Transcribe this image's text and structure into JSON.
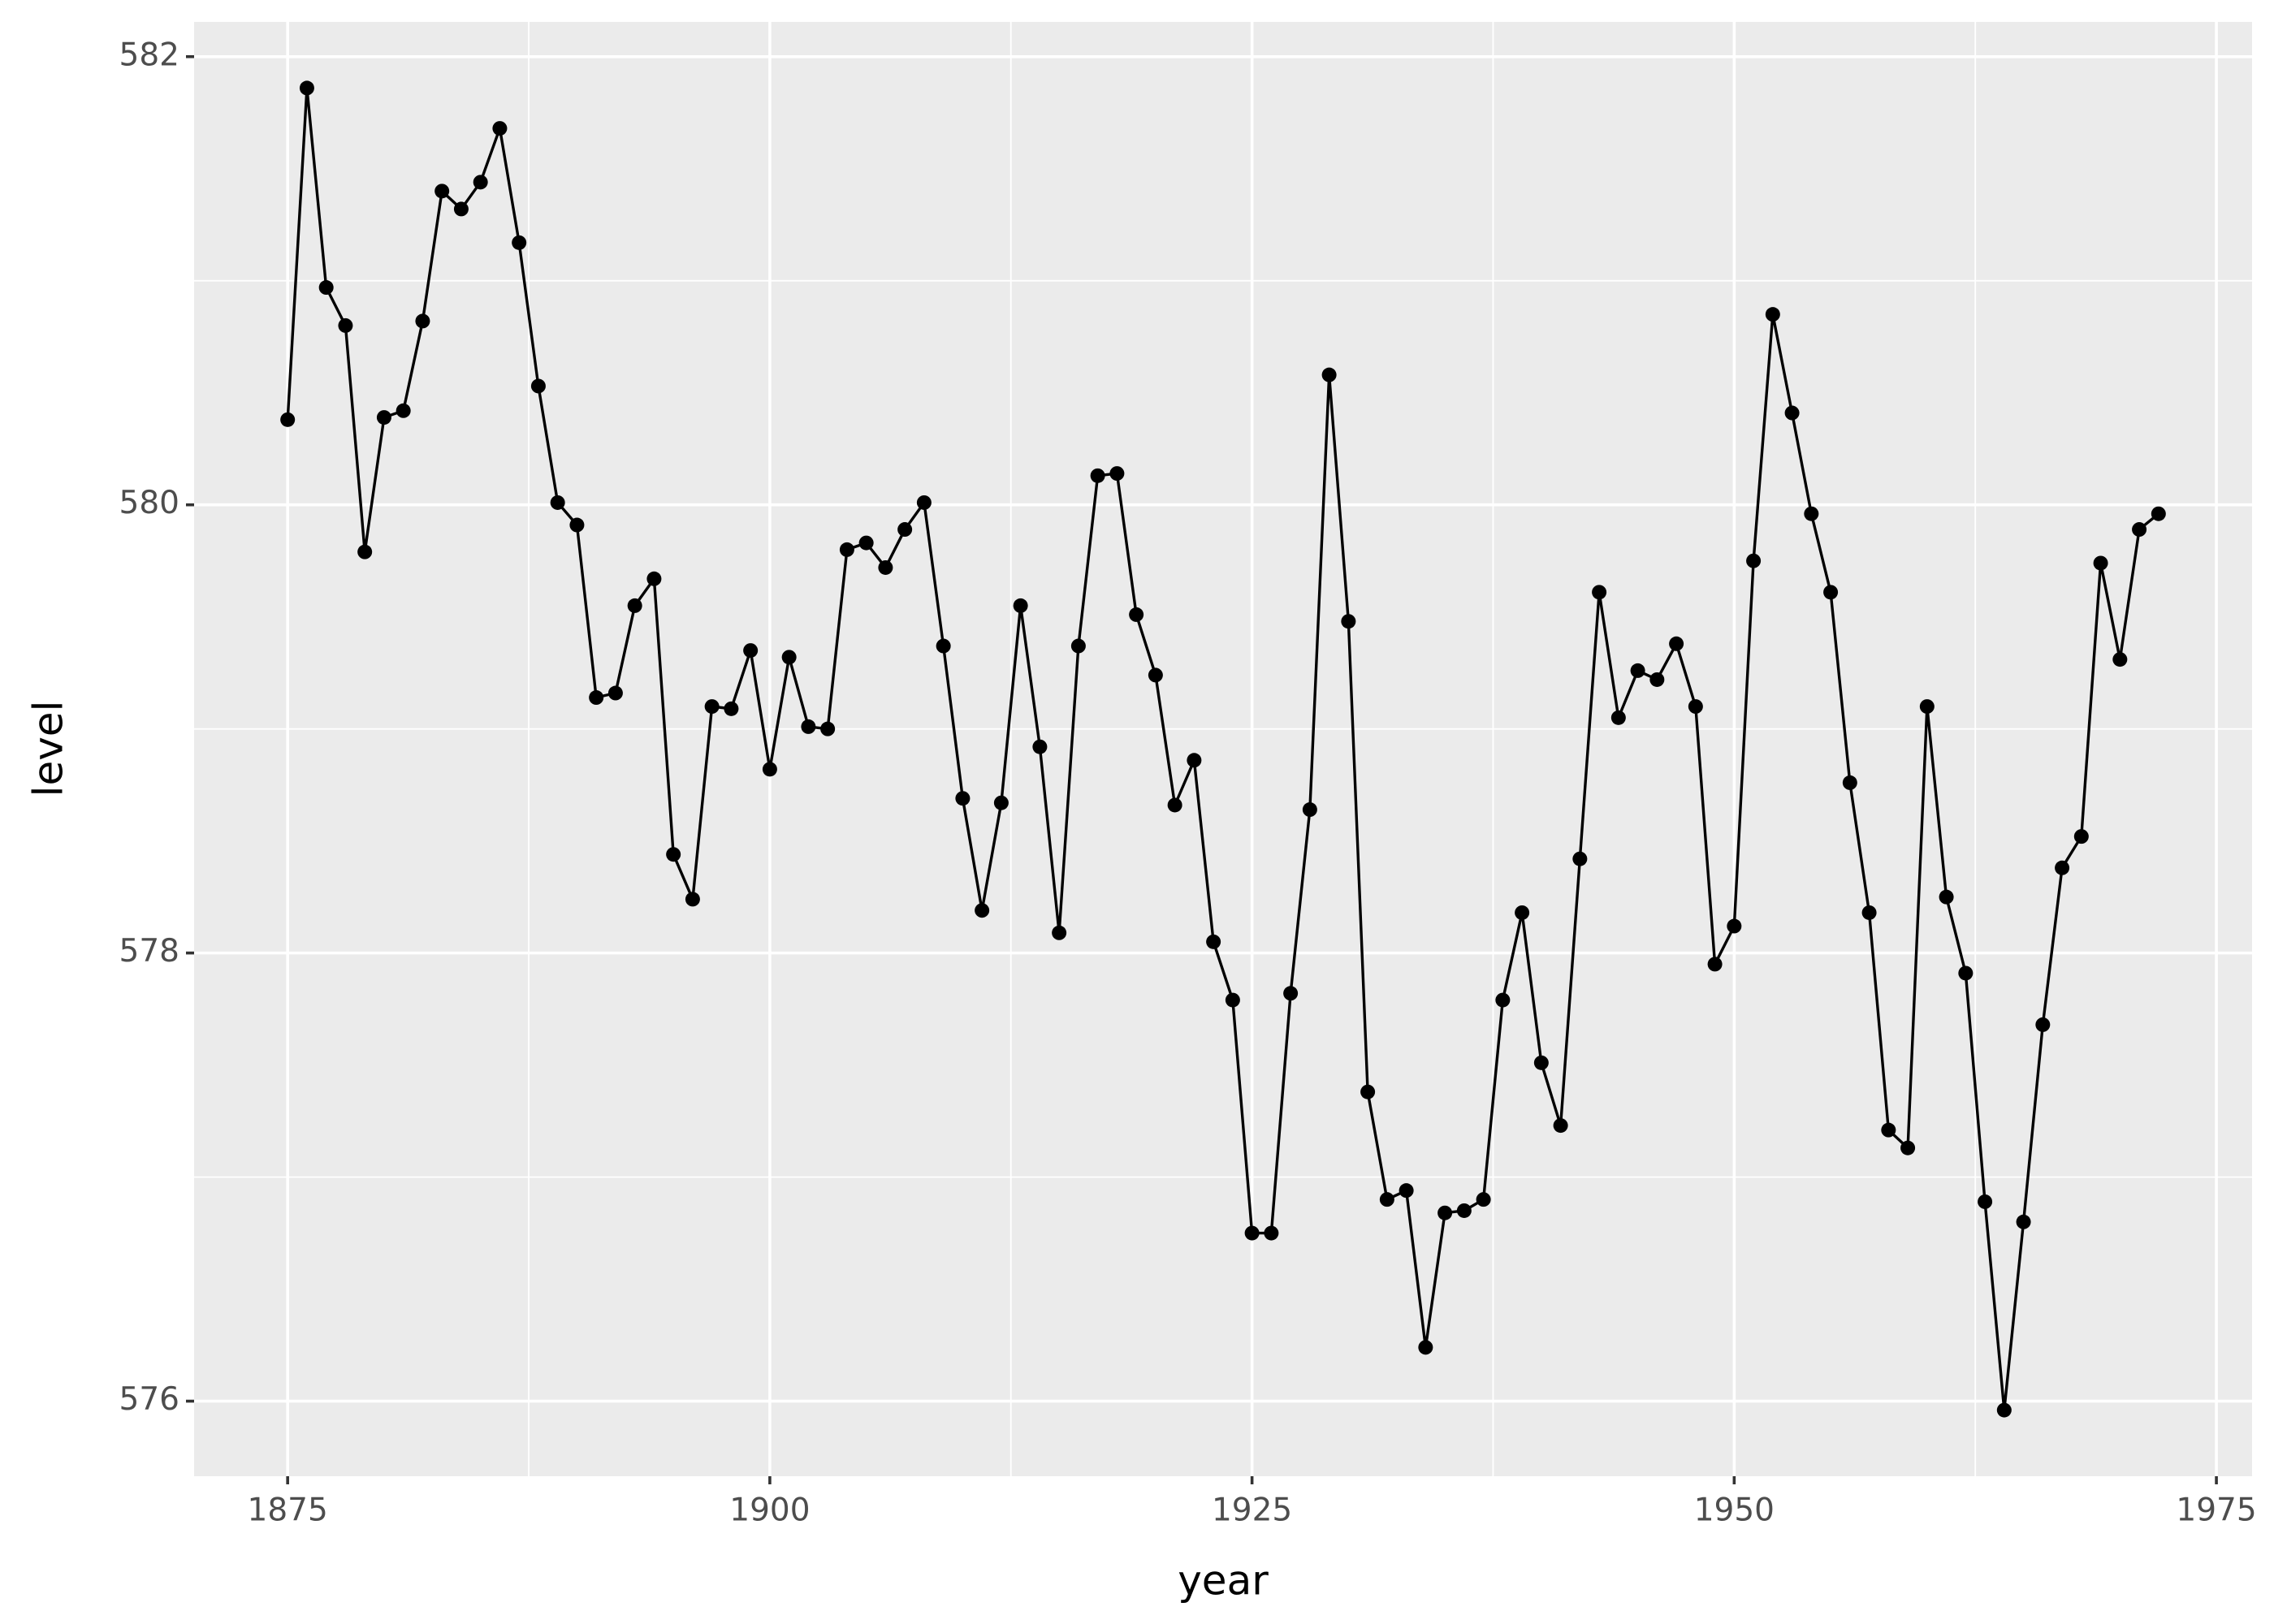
{
  "chart_data": {
    "type": "line",
    "markers": true,
    "grid": true,
    "x_label": "year",
    "y_label": "level",
    "x": [
      1875,
      1876,
      1877,
      1878,
      1879,
      1880,
      1881,
      1882,
      1883,
      1884,
      1885,
      1886,
      1887,
      1888,
      1889,
      1890,
      1891,
      1892,
      1893,
      1894,
      1895,
      1896,
      1897,
      1898,
      1899,
      1900,
      1901,
      1902,
      1903,
      1904,
      1905,
      1906,
      1907,
      1908,
      1909,
      1910,
      1911,
      1912,
      1913,
      1914,
      1915,
      1916,
      1917,
      1918,
      1919,
      1920,
      1921,
      1922,
      1923,
      1924,
      1925,
      1926,
      1927,
      1928,
      1929,
      1930,
      1931,
      1932,
      1933,
      1934,
      1935,
      1936,
      1937,
      1938,
      1939,
      1940,
      1941,
      1942,
      1943,
      1944,
      1945,
      1946,
      1947,
      1948,
      1949,
      1950,
      1951,
      1952,
      1953,
      1954,
      1955,
      1956,
      1957,
      1958,
      1959,
      1960,
      1961,
      1962,
      1963,
      1964,
      1965,
      1966,
      1967,
      1968,
      1969,
      1970,
      1971,
      1972
    ],
    "series": [
      {
        "color": "#000000",
        "values": [
          580.38,
          581.86,
          580.97,
          580.8,
          579.79,
          580.39,
          580.42,
          580.82,
          581.4,
          581.32,
          581.44,
          581.68,
          581.17,
          580.53,
          580.01,
          579.91,
          579.14,
          579.16,
          579.55,
          579.67,
          578.44,
          578.24,
          579.1,
          579.09,
          579.35,
          578.82,
          579.32,
          579.01,
          579.0,
          579.8,
          579.83,
          579.72,
          579.89,
          580.01,
          579.37,
          578.69,
          578.19,
          578.67,
          579.55,
          578.92,
          578.09,
          579.37,
          580.13,
          580.14,
          579.51,
          579.24,
          578.66,
          578.86,
          578.05,
          577.79,
          576.75,
          576.75,
          577.82,
          578.64,
          580.58,
          579.48,
          577.38,
          576.9,
          576.94,
          576.24,
          576.84,
          576.85,
          576.9,
          577.79,
          578.18,
          577.51,
          577.23,
          578.42,
          579.61,
          579.05,
          579.26,
          579.22,
          579.38,
          579.1,
          577.95,
          578.12,
          579.75,
          580.85,
          580.41,
          579.96,
          579.61,
          578.76,
          578.18,
          577.21,
          577.13,
          579.1,
          578.25,
          577.91,
          576.89,
          575.96,
          576.8,
          577.68,
          578.38,
          578.52,
          579.74,
          579.31,
          579.89,
          579.96
        ]
      }
    ],
    "xlim": [
      1870.15,
      1976.85
    ],
    "xticks": [
      1875,
      1900,
      1925,
      1950,
      1975
    ],
    "ylim": [
      575.665,
      582.155
    ],
    "yticks": [
      576,
      578,
      580,
      582
    ]
  }
}
